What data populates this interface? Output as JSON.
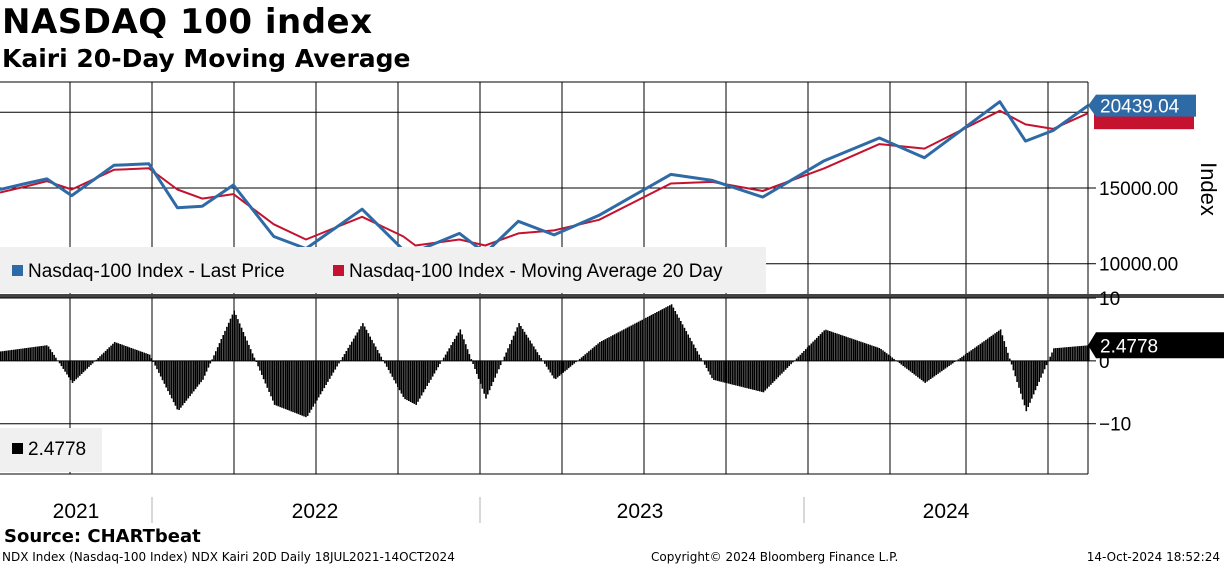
{
  "header": {
    "title": "NASDAQ 100 index",
    "subtitle": "Kairi 20-Day Moving Average"
  },
  "footer": {
    "source": "Source: CHARTbeat",
    "security": "NDX Index (Nasdaq-100 Index) NDX Kairi 20D  Daily 18JUL2021-14OCT2024",
    "copyright": "Copyright© 2024 Bloomberg Finance L.P.",
    "timestamp": "14-Oct-2024 18:52:24"
  },
  "colors": {
    "price": "#2e6aa6",
    "ma": "#c4122f",
    "kairi": "#000000",
    "legend_bg": "#f0f0f0"
  },
  "chart_data": [
    {
      "type": "line",
      "panel": "price",
      "ylabel": "Index",
      "ylim": [
        8000,
        22000
      ],
      "yticks": [
        10000,
        15000
      ],
      "ytick_labels": [
        "10000.00",
        "15000.00"
      ],
      "x_range": [
        "2021-07-18",
        "2024-10-14"
      ],
      "x_tick_labels": [
        "2021",
        "2022",
        "2023",
        "2024"
      ],
      "grid": true,
      "legend_placement": "bottom-left",
      "last_value_label": "20439.04",
      "series": [
        {
          "name": "Nasdaq-100 Index - Last Price",
          "color": "#2e6aa6",
          "x": [
            "2021-07-18",
            "2021-08-15",
            "2021-09-07",
            "2021-10-04",
            "2021-11-19",
            "2021-12-27",
            "2022-01-27",
            "2022-02-23",
            "2022-03-29",
            "2022-05-12",
            "2022-06-16",
            "2022-08-16",
            "2022-09-30",
            "2022-10-13",
            "2022-11-30",
            "2022-12-28",
            "2023-02-02",
            "2023-03-13",
            "2023-05-01",
            "2023-07-18",
            "2023-09-01",
            "2023-10-26",
            "2024-01-01",
            "2024-03-01",
            "2024-04-19",
            "2024-07-10",
            "2024-08-07",
            "2024-09-06",
            "2024-10-14"
          ],
          "values": [
            14900,
            15300,
            15600,
            14500,
            16500,
            16600,
            13700,
            13800,
            15200,
            11800,
            11000,
            13600,
            10900,
            10800,
            12000,
            10700,
            12800,
            11900,
            13200,
            15900,
            15500,
            14400,
            16800,
            18300,
            17000,
            20700,
            18100,
            18800,
            20439
          ]
        },
        {
          "name": "Nasdaq-100 Index - Moving Average 20 Day",
          "color": "#c4122f",
          "x": [
            "2021-07-18",
            "2021-08-15",
            "2021-09-07",
            "2021-10-04",
            "2021-11-19",
            "2021-12-27",
            "2022-01-27",
            "2022-02-23",
            "2022-03-29",
            "2022-05-12",
            "2022-06-16",
            "2022-08-16",
            "2022-09-30",
            "2022-10-13",
            "2022-11-30",
            "2022-12-28",
            "2023-02-02",
            "2023-03-13",
            "2023-05-01",
            "2023-07-18",
            "2023-09-01",
            "2023-10-26",
            "2024-01-01",
            "2024-03-01",
            "2024-04-19",
            "2024-07-10",
            "2024-08-07",
            "2024-09-06",
            "2024-10-14"
          ],
          "values": [
            14700,
            15100,
            15450,
            14900,
            16200,
            16300,
            14900,
            14300,
            14600,
            12600,
            11600,
            13100,
            11800,
            11200,
            11600,
            11200,
            12000,
            12200,
            12900,
            15300,
            15400,
            14800,
            16300,
            17900,
            17600,
            20100,
            19200,
            18900,
            19940
          ]
        }
      ]
    },
    {
      "type": "bar",
      "panel": "kairi",
      "ylim": [
        -18,
        10
      ],
      "yticks": [
        10,
        0,
        -10
      ],
      "ytick_labels": [
        "10",
        "0",
        "−10"
      ],
      "legend_placement": "bottom-left",
      "last_value_label": "2.4778",
      "series": [
        {
          "name": "2.4778",
          "color": "#000000",
          "x": [
            "2021-07-18",
            "2021-09-07",
            "2021-10-04",
            "2021-11-19",
            "2021-12-27",
            "2022-01-27",
            "2022-02-23",
            "2022-03-29",
            "2022-05-12",
            "2022-06-16",
            "2022-08-16",
            "2022-09-30",
            "2022-10-13",
            "2022-11-30",
            "2022-12-28",
            "2023-02-02",
            "2023-03-13",
            "2023-05-01",
            "2023-07-18",
            "2023-09-01",
            "2023-10-26",
            "2024-01-01",
            "2024-03-01",
            "2024-04-19",
            "2024-07-10",
            "2024-08-07",
            "2024-09-06",
            "2024-10-14"
          ],
          "values": [
            1.5,
            2.5,
            -3.5,
            3,
            1,
            -8,
            -3,
            8,
            -7,
            -9,
            6,
            -6,
            -7,
            5,
            -6,
            6,
            -3,
            3,
            9,
            -3,
            -5,
            5,
            2,
            -3.5,
            5,
            -8,
            2,
            2.4778
          ]
        }
      ]
    }
  ]
}
